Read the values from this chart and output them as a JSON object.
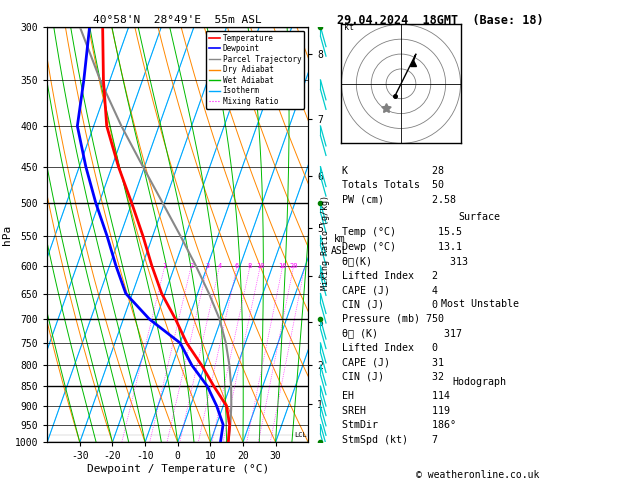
{
  "title_left": "40°58'N  28°49'E  55m ASL",
  "title_right": "29.04.2024  18GMT  (Base: 18)",
  "xlabel": "Dewpoint / Temperature (°C)",
  "ylabel_left": "hPa",
  "isotherm_color": "#00aaff",
  "dry_adiabat_color": "#ff8800",
  "wet_adiabat_color": "#00bb00",
  "mixing_ratio_color": "#ff00ff",
  "temp_profile_T": [
    15.5,
    14.0,
    11.0,
    5.0,
    -1.0,
    -8.0,
    -14.0,
    -21.0,
    -27.0,
    -33.0,
    -40.0,
    -48.0,
    -56.0,
    -62.0,
    -68.0
  ],
  "temp_profile_P": [
    1000,
    950,
    900,
    850,
    800,
    750,
    700,
    650,
    600,
    550,
    500,
    450,
    400,
    350,
    300
  ],
  "dewp_profile_T": [
    13.1,
    12.0,
    8.0,
    3.0,
    -4.0,
    -10.0,
    -22.0,
    -32.0,
    -38.0,
    -44.0,
    -51.0,
    -58.0,
    -65.0,
    -68.0,
    -72.0
  ],
  "dewp_profile_P": [
    1000,
    950,
    900,
    850,
    800,
    750,
    700,
    650,
    600,
    550,
    500,
    450,
    400,
    350,
    300
  ],
  "parcel_T": [
    15.5,
    14.2,
    12.5,
    10.3,
    7.5,
    4.0,
    -0.5,
    -6.5,
    -13.5,
    -21.5,
    -30.5,
    -40.5,
    -51.5,
    -63.0,
    -75.0
  ],
  "parcel_P": [
    1000,
    950,
    900,
    850,
    800,
    750,
    700,
    650,
    600,
    550,
    500,
    450,
    400,
    350,
    300
  ],
  "temp_color": "#ff0000",
  "dewp_color": "#0000ff",
  "parcel_color": "#888888",
  "wind_barb_color": "#00cccc",
  "lcl_pressure": 980,
  "km_ticks": [
    1,
    2,
    3,
    4,
    5,
    6,
    7,
    8
  ],
  "km_pressures": [
    895,
    800,
    706,
    618,
    538,
    462,
    392,
    325
  ],
  "stats": {
    "K": "28",
    "Totals Totals": "50",
    "PW (cm)": "2.58",
    "Temp (C)": "15.5",
    "Dewp (C)": "13.1",
    "theta_e_surf": "313",
    "Lifted Index_surf": "2",
    "CAPE_surf": "4",
    "CIN_surf": "0",
    "Pressure (mb)": "750",
    "theta_e_mu": "317",
    "Lifted Index_mu": "0",
    "CAPE_mu": "31",
    "CIN_mu": "32",
    "EH": "114",
    "SREH": "119",
    "StmDir": "186°",
    "StmSpd (kt)": "7"
  },
  "copyright": "© weatheronline.co.uk"
}
